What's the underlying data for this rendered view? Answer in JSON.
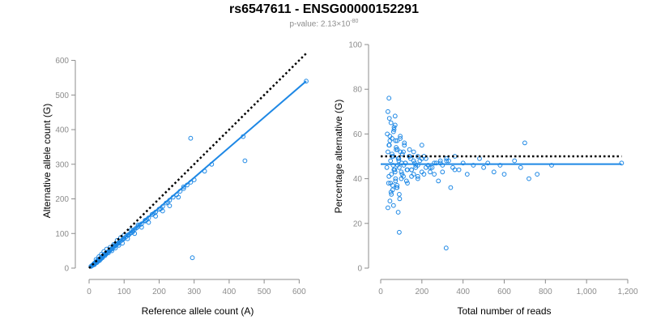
{
  "title": "rs6547611 - ENSG00000152291",
  "subtitle": {
    "prefix": "p-value: 2.13×10",
    "exponent": "-80"
  },
  "colors": {
    "points": "#1e88e5",
    "fit": "#1e88e5",
    "reference": "#000000",
    "axis": "#8c8c8c"
  },
  "chart_data": [
    {
      "type": "scatter",
      "xlabel": "Reference allele count (A)",
      "ylabel": "Alternative allele count (G)",
      "xlim": [
        0,
        620
      ],
      "ylim": [
        0,
        620
      ],
      "xticks": [
        0,
        100,
        200,
        300,
        400,
        500,
        600
      ],
      "xtick_labels": [
        "0",
        "100",
        "200",
        "300",
        "400",
        "500",
        "600"
      ],
      "yticks": [
        0,
        100,
        200,
        300,
        400,
        500,
        600
      ],
      "ytick_labels": [
        "0",
        "100",
        "200",
        "300",
        "400",
        "500",
        "600"
      ],
      "reference_line": {
        "style": "dotted",
        "x": [
          0,
          620
        ],
        "y": [
          0,
          620
        ]
      },
      "fit_line": {
        "style": "solid",
        "x": [
          0,
          620
        ],
        "y": [
          0,
          540
        ]
      },
      "points": {
        "x": [
          5,
          8,
          10,
          12,
          14,
          15,
          16,
          18,
          20,
          22,
          24,
          25,
          26,
          28,
          30,
          32,
          34,
          35,
          36,
          38,
          40,
          42,
          44,
          45,
          46,
          48,
          50,
          52,
          55,
          58,
          60,
          62,
          65,
          68,
          70,
          72,
          75,
          78,
          80,
          85,
          90,
          95,
          100,
          105,
          110,
          115,
          120,
          125,
          130,
          135,
          140,
          150,
          160,
          170,
          180,
          190,
          200,
          210,
          220,
          230,
          240,
          250,
          260,
          270,
          280,
          290,
          300,
          330,
          350,
          440,
          445,
          620,
          15,
          22,
          30,
          38,
          45,
          55,
          65,
          75,
          85,
          95,
          110,
          130,
          150,
          170,
          190,
          210,
          230,
          255,
          270,
          290,
          295,
          20,
          28,
          35,
          42,
          50,
          60,
          70,
          80,
          90,
          100,
          120,
          140,
          160,
          180,
          200,
          10,
          18,
          26,
          33,
          40,
          48,
          56,
          64,
          72,
          85,
          98,
          112,
          125,
          145,
          165,
          185,
          205,
          225
        ],
        "y": [
          5,
          7,
          9,
          10,
          12,
          14,
          13,
          16,
          18,
          19,
          22,
          20,
          24,
          25,
          27,
          28,
          30,
          32,
          31,
          34,
          36,
          38,
          39,
          41,
          40,
          43,
          44,
          46,
          48,
          50,
          52,
          54,
          56,
          60,
          62,
          65,
          66,
          68,
          70,
          74,
          78,
          82,
          86,
          90,
          95,
          98,
          102,
          108,
          112,
          116,
          120,
          128,
          136,
          145,
          155,
          162,
          170,
          178,
          188,
          196,
          205,
          212,
          222,
          230,
          240,
          248,
          255,
          280,
          300,
          380,
          310,
          540,
          10,
          16,
          22,
          30,
          36,
          44,
          50,
          58,
          66,
          72,
          85,
          100,
          118,
          132,
          150,
          165,
          180,
          205,
          235,
          375,
          30,
          25,
          33,
          40,
          48,
          55,
          60,
          68,
          80,
          88,
          95,
          110,
          125,
          138,
          155,
          170,
          8,
          15,
          20,
          26,
          34,
          40,
          48,
          55,
          62,
          72,
          84,
          95,
          105,
          125,
          140,
          158,
          172,
          190
        ]
      }
    },
    {
      "type": "scatter",
      "xlabel": "Total number of reads",
      "ylabel": "Percentage alternative (G)",
      "xlim": [
        0,
        1200
      ],
      "ylim": [
        0,
        100
      ],
      "xticks": [
        0,
        200,
        400,
        600,
        800,
        1000,
        1200
      ],
      "xtick_labels": [
        "0",
        "200",
        "400",
        "600",
        "800",
        "1,000",
        "1,200"
      ],
      "yticks": [
        0,
        20,
        40,
        60,
        80,
        100
      ],
      "ytick_labels": [
        "0",
        "20",
        "40",
        "60",
        "80",
        "100"
      ],
      "reference_line": {
        "style": "dotted",
        "x": [
          0,
          1170
        ],
        "y": [
          50,
          50
        ]
      },
      "fit_line": {
        "style": "solid",
        "x": [
          0,
          1170
        ],
        "y": [
          46.5,
          46.5
        ]
      },
      "points": {
        "x": [
          30,
          32,
          35,
          38,
          40,
          42,
          45,
          48,
          50,
          52,
          55,
          58,
          60,
          62,
          65,
          68,
          70,
          72,
          75,
          78,
          80,
          82,
          85,
          88,
          90,
          95,
          100,
          105,
          110,
          115,
          120,
          130,
          140,
          150,
          160,
          170,
          180,
          190,
          200,
          210,
          220,
          240,
          260,
          280,
          300,
          320,
          340,
          360,
          380,
          400,
          420,
          450,
          480,
          500,
          520,
          550,
          580,
          600,
          650,
          680,
          700,
          720,
          760,
          830,
          1170,
          35,
          40,
          45,
          50,
          55,
          60,
          65,
          70,
          75,
          80,
          85,
          90,
          95,
          100,
          110,
          120,
          130,
          140,
          150,
          160,
          170,
          180,
          200,
          230,
          260,
          290,
          320,
          350,
          40,
          48,
          56,
          64,
          72,
          80,
          88,
          96,
          104,
          112,
          125,
          138,
          150,
          165,
          180,
          200,
          220,
          240,
          270,
          300,
          330,
          360,
          42,
          52,
          62,
          72,
          82,
          92,
          102,
          115,
          128,
          145,
          160,
          180,
          210,
          250,
          290,
          35,
          45,
          58,
          70,
          90,
          318
        ],
        "y": [
          45,
          60,
          52,
          38,
          76,
          55,
          30,
          48,
          65,
          42,
          58,
          35,
          50,
          28,
          62,
          44,
          68,
          40,
          53,
          36,
          57,
          46,
          25,
          49,
          33,
          59,
          43,
          51,
          41,
          56,
          47,
          38,
          50,
          44,
          52,
          46,
          40,
          48,
          55,
          42,
          49,
          45,
          47,
          39,
          43,
          48,
          36,
          50,
          44,
          47,
          42,
          46,
          49,
          45,
          47,
          43,
          46,
          42,
          48,
          45,
          56,
          40,
          42,
          46,
          47,
          70,
          41,
          57,
          34,
          51,
          46,
          63,
          43,
          54,
          37,
          49,
          45,
          58,
          40,
          52,
          47,
          44,
          53,
          41,
          48,
          45,
          50,
          43,
          46,
          42,
          47,
          49,
          45,
          55,
          38,
          50,
          44,
          57,
          36,
          48,
          52,
          42,
          46,
          39,
          50,
          44,
          47,
          41,
          49,
          45,
          43,
          47,
          46,
          48,
          44,
          67,
          33,
          61,
          39,
          53,
          31,
          47,
          55,
          44,
          49,
          42,
          46,
          50,
          45,
          48,
          27,
          59,
          37,
          64,
          16,
          9
        ]
      }
    }
  ]
}
